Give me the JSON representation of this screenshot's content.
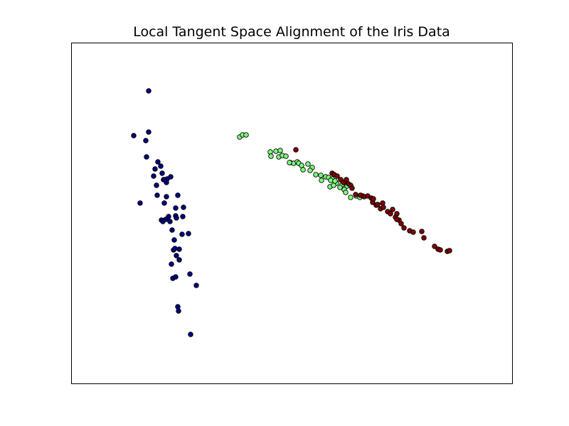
{
  "chart_data": {
    "type": "scatter",
    "title": "Local Tangent Space Alignment of the Iris Data",
    "xlabel": "",
    "ylabel": "",
    "xlim": [
      0,
      620
    ],
    "ylim": [
      0,
      480
    ],
    "grid": false,
    "ticks_visible": false,
    "marker_edge_color": "#000000",
    "series": [
      {
        "color": "#000080",
        "points": [
          [
            109,
            412
          ],
          [
            88,
            349
          ],
          [
            109,
            354
          ],
          [
            105,
            342
          ],
          [
            106,
            319
          ],
          [
            122,
            312
          ],
          [
            118,
            302
          ],
          [
            126,
            306
          ],
          [
            116,
            292
          ],
          [
            128,
            296
          ],
          [
            135,
            288
          ],
          [
            140,
            291
          ],
          [
            130,
            287
          ],
          [
            134,
            283
          ],
          [
            131,
            287
          ],
          [
            120,
            279
          ],
          [
            134,
            263
          ],
          [
            121,
            265
          ],
          [
            150,
            265
          ],
          [
            97,
            254
          ],
          [
            131,
            254
          ],
          [
            158,
            248
          ],
          [
            147,
            247
          ],
          [
            147,
            236
          ],
          [
            157,
            235
          ],
          [
            137,
            235
          ],
          [
            148,
            233
          ],
          [
            133,
            231
          ],
          [
            127,
            230
          ],
          [
            129,
            228
          ],
          [
            139,
            228
          ],
          [
            142,
            216
          ],
          [
            156,
            210
          ],
          [
            165,
            211
          ],
          [
            145,
            202
          ],
          [
            152,
            189
          ],
          [
            144,
            188
          ],
          [
            146,
            190
          ],
          [
            148,
            180
          ],
          [
            141,
            168
          ],
          [
            152,
            174
          ],
          [
            167,
            154
          ],
          [
            143,
            148
          ],
          [
            176,
            138
          ],
          [
            147,
            150
          ],
          [
            150,
            108
          ],
          [
            151,
            102
          ],
          [
            168,
            69
          ]
        ]
      },
      {
        "color": "#80ff80",
        "points": [
          [
            237,
            347
          ],
          [
            241,
            350
          ],
          [
            246,
            350
          ],
          [
            280,
            326
          ],
          [
            288,
            327
          ],
          [
            294,
            328
          ],
          [
            281,
            320
          ],
          [
            292,
            319
          ],
          [
            297,
            321
          ],
          [
            302,
            320
          ],
          [
            308,
            311
          ],
          [
            313,
            310
          ],
          [
            307,
            311
          ],
          [
            318,
            312
          ],
          [
            320,
            310
          ],
          [
            324,
            307
          ],
          [
            333,
            309
          ],
          [
            339,
            304
          ],
          [
            326,
            301
          ],
          [
            336,
            300
          ],
          [
            344,
            294
          ],
          [
            351,
            293
          ],
          [
            358,
            291
          ],
          [
            362,
            290
          ],
          [
            367,
            288
          ],
          [
            373,
            282
          ],
          [
            381,
            280
          ],
          [
            388,
            278
          ],
          [
            384,
            273
          ],
          [
            378,
            276
          ],
          [
            364,
            277
          ],
          [
            369,
            279
          ],
          [
            393,
            262
          ],
          [
            386,
            269
          ],
          [
            401,
            264
          ],
          [
            406,
            262
          ],
          [
            410,
            264
          ],
          [
            365,
            286
          ],
          [
            371,
            285
          ],
          [
            352,
            286
          ]
        ]
      },
      {
        "color": "#800000",
        "points": [
          [
            316,
            329
          ],
          [
            367,
            296
          ],
          [
            370,
            294
          ],
          [
            374,
            292
          ],
          [
            379,
            287
          ],
          [
            383,
            283
          ],
          [
            390,
            281
          ],
          [
            393,
            279
          ],
          [
            387,
            287
          ],
          [
            407,
            265
          ],
          [
            412,
            263
          ],
          [
            417,
            264
          ],
          [
            422,
            261
          ],
          [
            424,
            255
          ],
          [
            429,
            251
          ],
          [
            435,
            246
          ],
          [
            439,
            248
          ],
          [
            445,
            242
          ],
          [
            449,
            239
          ],
          [
            458,
            239
          ],
          [
            456,
            234
          ],
          [
            461,
            230
          ],
          [
            464,
            225
          ],
          [
            468,
            219
          ],
          [
            476,
            215
          ],
          [
            481,
            213
          ],
          [
            493,
            214
          ],
          [
            496,
            205
          ],
          [
            511,
            193
          ],
          [
            516,
            189
          ],
          [
            519,
            188
          ],
          [
            529,
            186
          ],
          [
            532,
            187
          ],
          [
            400,
            266
          ],
          [
            438,
            254
          ],
          [
            425,
            260
          ],
          [
            431,
            252
          ],
          [
            452,
            245
          ],
          [
            458,
            231
          ],
          [
            395,
            275
          ]
        ]
      }
    ]
  }
}
